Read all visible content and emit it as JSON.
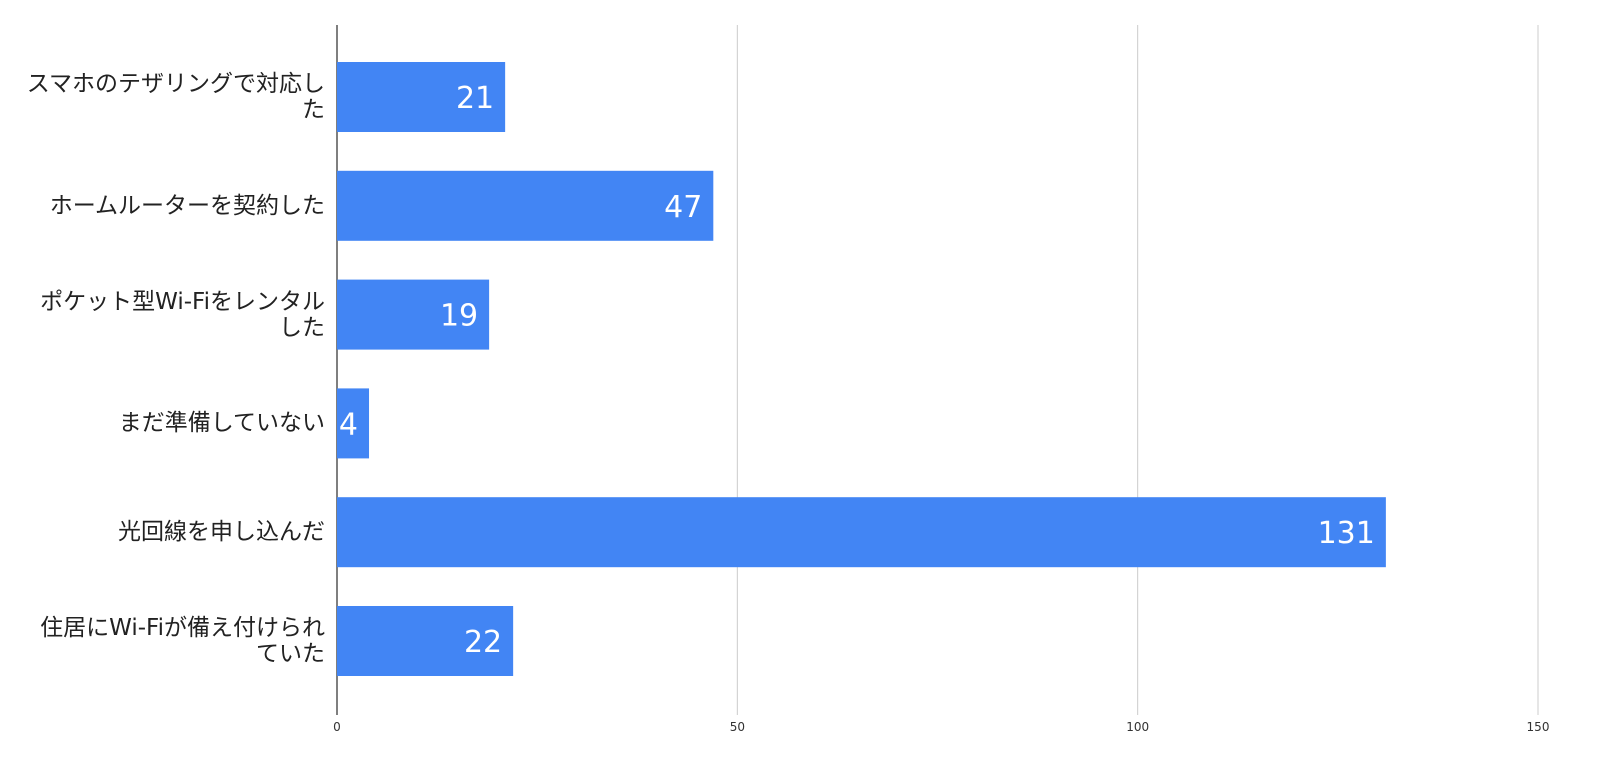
{
  "chart_data": {
    "type": "hbar",
    "categories": [
      "スマホのテザリングで対応した",
      "ホームルーターを契約した",
      "ポケット型Wi-Fiをレンタルした",
      "まだ準備していない",
      "光回線を申し込んだ",
      "住居にWi-Fiが備え付けられていた"
    ],
    "values": [
      21,
      47,
      19,
      4,
      131,
      22
    ],
    "color": "#4285f4",
    "xlim": [
      0,
      150
    ],
    "xticks": [
      0,
      50,
      100,
      150
    ],
    "grid": true
  }
}
